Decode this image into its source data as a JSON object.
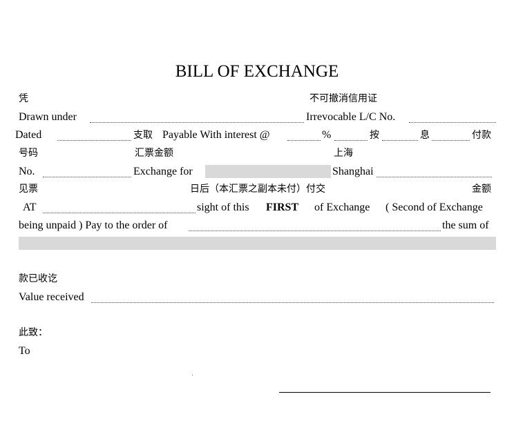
{
  "title": "BILL OF EXCHANGE",
  "row1": {
    "cn_by": "凭",
    "cn_lc": "不可撤消信用证"
  },
  "row2": {
    "drawn_under": "Drawn under",
    "lc_no": "Irrevocable L/C No."
  },
  "row3": {
    "dated": "Dated",
    "cn_draw": "支取",
    "payable": "Payable With interest @",
    "percent": "%",
    "cn_an": "按",
    "cn_xi": "息",
    "cn_pay": "付款"
  },
  "row4": {
    "cn_no": "号码",
    "cn_amount": "汇票金额",
    "cn_shanghai": "上海"
  },
  "row5": {
    "no": "No.",
    "exchange_for": "Exchange for",
    "shanghai": "Shanghai"
  },
  "row6": {
    "cn_sight": "见票",
    "cn_after": "日后（本汇票之副本未付）付交",
    "cn_sum": "金额"
  },
  "row7": {
    "at": "AT",
    "sight": "sight of this",
    "first": "FIRST",
    "of_exchange": "of Exchange",
    "second": "( Second of Exchange"
  },
  "row8": {
    "unpaid": "being unpaid ) Pay to the order of",
    "sum_of": "the sum of"
  },
  "received": {
    "cn": "款已收讫",
    "en": "Value received"
  },
  "to": {
    "cn": "此致：",
    "en": "To"
  }
}
